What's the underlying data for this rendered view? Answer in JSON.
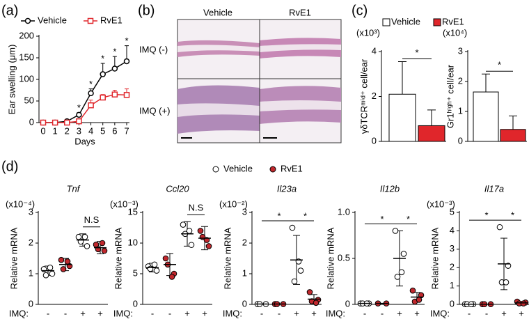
{
  "panel_labels": [
    "(a)",
    "(b)",
    "(c)",
    "(d)"
  ],
  "histology": {
    "columns": [
      "Vehicle",
      "RvE1"
    ],
    "rows": [
      "IMQ (-)",
      "IMQ (+)"
    ]
  },
  "chart_data": [
    {
      "type": "line",
      "xlabel": "Days",
      "ylabel": "Ear swelling (μm)",
      "x": [
        0,
        1,
        2,
        3,
        4,
        5,
        6,
        7
      ],
      "xlim": [
        0,
        7
      ],
      "xticks": [
        0,
        1,
        2,
        3,
        4,
        5,
        6,
        7
      ],
      "ylim": [
        0,
        200
      ],
      "yticks": [
        0,
        50,
        100,
        150,
        200
      ],
      "legend": "top",
      "series": [
        {
          "name": "Vehicle",
          "color": "#000000",
          "marker": "circle",
          "values": [
            0,
            0,
            3,
            18,
            68,
            112,
            125,
            142
          ],
          "errors": [
            0,
            0,
            2,
            5,
            10,
            25,
            28,
            36
          ]
        },
        {
          "name": "RvE1",
          "color": "#e0262b",
          "marker": "square",
          "values": [
            0,
            0,
            0,
            3,
            40,
            58,
            65,
            64
          ],
          "errors": [
            0,
            0,
            0,
            3,
            12,
            7,
            10,
            14
          ]
        }
      ],
      "annotations": [
        {
          "text": "*",
          "x": 3
        },
        {
          "text": "*",
          "x": 4
        },
        {
          "text": "*",
          "x": 5
        },
        {
          "text": "*",
          "x": 6
        },
        {
          "text": "*",
          "x": 7
        }
      ]
    },
    {
      "type": "bar",
      "scale_label": "(x10³)",
      "ylabel": "γδTCRᵐⁱᵈ⁺ cell/ear",
      "legend": [
        "Vehicle",
        "RvE1"
      ],
      "values": [
        2.1,
        0.7
      ],
      "errors": [
        1.45,
        0.7
      ],
      "colors": [
        "#ffffff",
        "#e0262b"
      ],
      "ylim": [
        0,
        4
      ],
      "yticks": [
        0,
        2,
        4
      ],
      "annotation": "*"
    },
    {
      "type": "bar",
      "scale_label": "(x10⁴)",
      "ylabel": "Gr1ʰⁱᵍʰ⁺ cell/ear",
      "values": [
        1.65,
        0.4
      ],
      "errors": [
        0.6,
        0.45
      ],
      "colors": [
        "#ffffff",
        "#e0262b"
      ],
      "ylim": [
        0,
        3
      ],
      "yticks": [
        0,
        1,
        2,
        3
      ],
      "annotation": "*"
    },
    {
      "type": "dot",
      "title": "Tnf",
      "scale_label": "(x10⁻⁴)",
      "ylabel": "Relative mRNA",
      "xlabel": "IMQ:",
      "categories": [
        "-",
        "-",
        "+",
        "+"
      ],
      "group_colors": [
        "#ffffff",
        "#c0282d",
        "#ffffff",
        "#c0282d"
      ],
      "legend": [
        "Vehicle",
        "RvE1"
      ],
      "ylim": [
        0,
        3
      ],
      "yticks": [
        0,
        1,
        2,
        3
      ],
      "groups": [
        {
          "points": [
            1.15,
            1.0,
            0.95,
            1.2
          ],
          "mean": 1.1,
          "sd": 0.15
        },
        {
          "points": [
            1.45,
            1.25,
            1.15,
            1.4
          ],
          "mean": 1.3,
          "sd": 0.2
        },
        {
          "points": [
            2.2,
            1.9,
            2.05,
            2.2
          ],
          "mean": 2.1,
          "sd": 0.2
        },
        {
          "points": [
            1.95,
            1.75,
            1.8,
            2.0
          ],
          "mean": 1.85,
          "sd": 0.2
        }
      ],
      "annotations": [
        {
          "text": "N.S",
          "groups": [
            2,
            3
          ]
        }
      ]
    },
    {
      "type": "dot",
      "title": "Ccl20",
      "scale_label": "(x10⁻³)",
      "ylabel": "Relative mRNA",
      "xlabel": "IMQ:",
      "categories": [
        "-",
        "-",
        "+",
        "+"
      ],
      "group_colors": [
        "#ffffff",
        "#c0282d",
        "#ffffff",
        "#c0282d"
      ],
      "ylim": [
        0,
        15
      ],
      "yticks": [
        0,
        5,
        10,
        15
      ],
      "groups": [
        {
          "points": [
            6.2,
            5.5,
            5.8,
            6.5
          ],
          "mean": 6,
          "sd": 0.7
        },
        {
          "points": [
            7.5,
            5,
            6.5,
            4.5
          ],
          "mean": 6.5,
          "sd": 1.8
        },
        {
          "points": [
            13,
            9.7,
            11.5,
            12
          ],
          "mean": 11.5,
          "sd": 2
        },
        {
          "points": [
            12,
            9.5,
            11,
            10.5
          ],
          "mean": 10.8,
          "sd": 1.9
        }
      ],
      "annotations": [
        {
          "text": "N.S",
          "groups": [
            2,
            3
          ]
        }
      ]
    },
    {
      "type": "dot",
      "title": "Il23a",
      "scale_label": "(x10⁻²)",
      "ylabel": "Relative mRNA",
      "xlabel": "IMQ:",
      "categories": [
        "-",
        "-",
        "+",
        "+"
      ],
      "group_colors": [
        "#ffffff",
        "#c0282d",
        "#ffffff",
        "#c0282d"
      ],
      "ylim": [
        0,
        3
      ],
      "yticks": [
        0,
        1,
        2,
        3
      ],
      "groups": [
        {
          "points": [
            0.01,
            0.01,
            0.01
          ],
          "mean": 0.01,
          "sd": 0
        },
        {
          "points": [
            0.01,
            0.01,
            0.01
          ],
          "mean": 0.01,
          "sd": 0
        },
        {
          "points": [
            2.5,
            1.1,
            0.75,
            1.4
          ],
          "mean": 1.45,
          "sd": 0.8
        },
        {
          "points": [
            0.4,
            0.15,
            0.1,
            0.05
          ],
          "mean": 0.17,
          "sd": 0.15
        }
      ],
      "annotations": [
        {
          "text": "*",
          "groups": [
            0,
            2
          ]
        },
        {
          "text": "*",
          "groups": [
            2,
            3
          ]
        }
      ]
    },
    {
      "type": "dot",
      "title": "Il12b",
      "ylabel": "Relative mRNA",
      "xlabel": "IMQ:",
      "categories": [
        "-",
        "-",
        "+",
        "+"
      ],
      "group_colors": [
        "#ffffff",
        "#c0282d",
        "#ffffff",
        "#c0282d"
      ],
      "ylim": [
        0,
        1
      ],
      "yticks": [
        0,
        0.5,
        {
          "value": 1,
          "label": "1.0"
        }
      ],
      "groups": [
        {
          "points": [
            0.01,
            0.01,
            0.01,
            0.01
          ],
          "mean": 0.01,
          "sd": 0
        },
        {
          "points": [
            0.01,
            0.01
          ],
          "mean": 0.01,
          "sd": 0
        },
        {
          "points": [
            0.8,
            0.55,
            0.3,
            0.35
          ],
          "mean": 0.5,
          "sd": 0.3
        },
        {
          "points": [
            0.15,
            0.1,
            0.03,
            0.05
          ],
          "mean": 0.08,
          "sd": 0.05
        }
      ],
      "annotations": [
        {
          "text": "*",
          "groups": [
            0,
            2
          ]
        },
        {
          "text": "*",
          "groups": [
            2,
            3
          ]
        }
      ]
    },
    {
      "type": "dot",
      "title": "Il17a",
      "scale_label": "(x10⁻³)",
      "ylabel": "Relative mRNA",
      "xlabel": "IMQ:",
      "categories": [
        "-",
        "-",
        "+",
        "+"
      ],
      "group_colors": [
        "#ffffff",
        "#c0282d",
        "#ffffff",
        "#c0282d"
      ],
      "ylim": [
        0,
        5
      ],
      "yticks": [
        0,
        1,
        2,
        3,
        4,
        5
      ],
      "groups": [
        {
          "points": [
            0.01,
            0.01,
            0.01,
            0.01
          ],
          "mean": 0.01,
          "sd": 0
        },
        {
          "points": [
            0.01,
            0.01,
            0.01
          ],
          "mean": 0.01,
          "sd": 0
        },
        {
          "points": [
            4.2,
            2.1,
            1.2,
            1.2
          ],
          "mean": 2.2,
          "sd": 1.4
        },
        {
          "points": [
            0.15,
            0.1,
            0.05,
            0.05
          ],
          "mean": 0.08,
          "sd": 0.05
        }
      ],
      "annotations": [
        {
          "text": "*",
          "groups": [
            0,
            2
          ]
        },
        {
          "text": "*",
          "groups": [
            2,
            3
          ]
        }
      ]
    }
  ]
}
